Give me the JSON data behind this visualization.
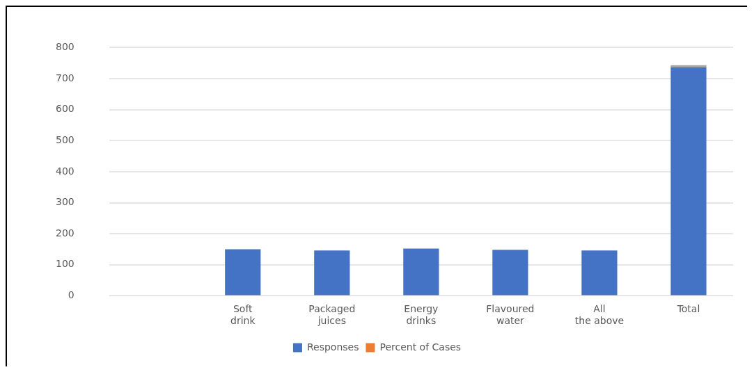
{
  "chart_data": {
    "type": "bar",
    "stacked": true,
    "categories": [
      null,
      "Soft drink",
      "Packaged juices",
      "Energy drinks",
      "Flavoured water",
      "All the above",
      "Total"
    ],
    "series": [
      {
        "name": "Responses",
        "color": "#4472c4",
        "values": [
          null,
          150,
          146,
          152,
          148,
          146,
          736
        ]
      },
      {
        "name": "Percent of Cases",
        "color": "#ed7d31",
        "values": [
          null,
          null,
          null,
          null,
          null,
          null,
          null
        ]
      },
      {
        "color": "#a5a5a5",
        "values": [
          null,
          null,
          null,
          null,
          null,
          null,
          7
        ]
      }
    ],
    "ylim": [
      0,
      800
    ],
    "yticks": [
      0,
      100,
      200,
      300,
      400,
      500,
      600,
      700,
      800
    ],
    "grid": "y",
    "legend": "bottom"
  }
}
